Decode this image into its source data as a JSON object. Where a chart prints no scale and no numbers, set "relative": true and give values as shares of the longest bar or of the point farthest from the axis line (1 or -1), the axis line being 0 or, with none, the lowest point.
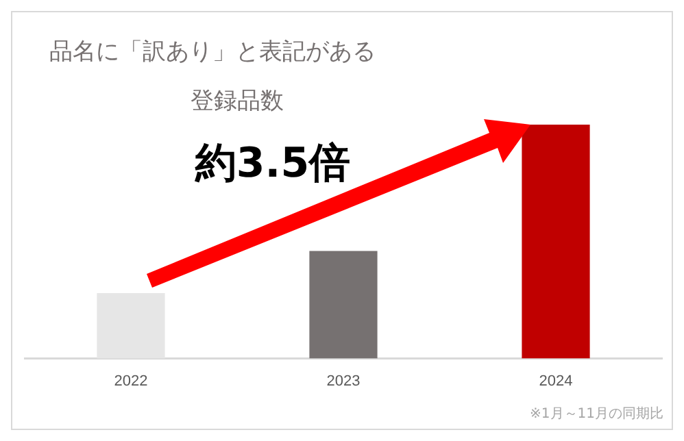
{
  "chart_data": {
    "type": "bar",
    "title": "品名に「訳あり」と表記がある",
    "subtitle": "登録品数",
    "categories": [
      "2022",
      "2023",
      "2024"
    ],
    "values": [
      0.28,
      0.46,
      1
    ],
    "colors": [
      "#e6e6e6",
      "#767171",
      "#c00000"
    ],
    "relative": true,
    "grid": false,
    "legend": false,
    "annotations": [
      "約3.5倍",
      "※1月～11月の同期比"
    ]
  }
}
